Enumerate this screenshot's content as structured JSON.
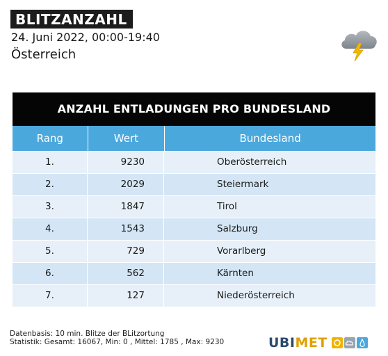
{
  "header": {
    "title": "BLITZANZAHL",
    "date_range": "24. Juni 2022, 00:00-19:40",
    "region": "Österreich"
  },
  "icons": {
    "weather": "thunderstorm-cloud-icon"
  },
  "colors": {
    "header_bg": "#4ba8dd",
    "title_bg": "#050505",
    "row_light": "#e7f0f9",
    "row_dark": "#d4e6f5",
    "logo_blue": "#2b4a6e",
    "logo_yellow": "#e0a000"
  },
  "chart_data": {
    "type": "table",
    "title": "ANZAHL ENTLADUNGEN PRO BUNDESLAND",
    "columns": [
      "Rang",
      "Wert",
      "Bundesland"
    ],
    "rows": [
      [
        "1.",
        "9230",
        "Oberösterreich"
      ],
      [
        "2.",
        "2029",
        "Steiermark"
      ],
      [
        "3.",
        "1847",
        "Tirol"
      ],
      [
        "4.",
        "1543",
        "Salzburg"
      ],
      [
        "5.",
        "729",
        "Vorarlberg"
      ],
      [
        "6.",
        "562",
        "Kärnten"
      ],
      [
        "7.",
        "127",
        "Niederösterreich"
      ]
    ]
  },
  "footer": {
    "line1": "Datenbasis: 10 min. Blitze der BLitzortung",
    "line2": "Statistik: Gesamt: 16067, Min: 0 , Mittel: 1785 , Max: 9230"
  },
  "logo": {
    "part1": "UBI",
    "part2": "MET",
    "box_colors": [
      "#f0b400",
      "#9aa4ad",
      "#4ba8dd"
    ]
  }
}
